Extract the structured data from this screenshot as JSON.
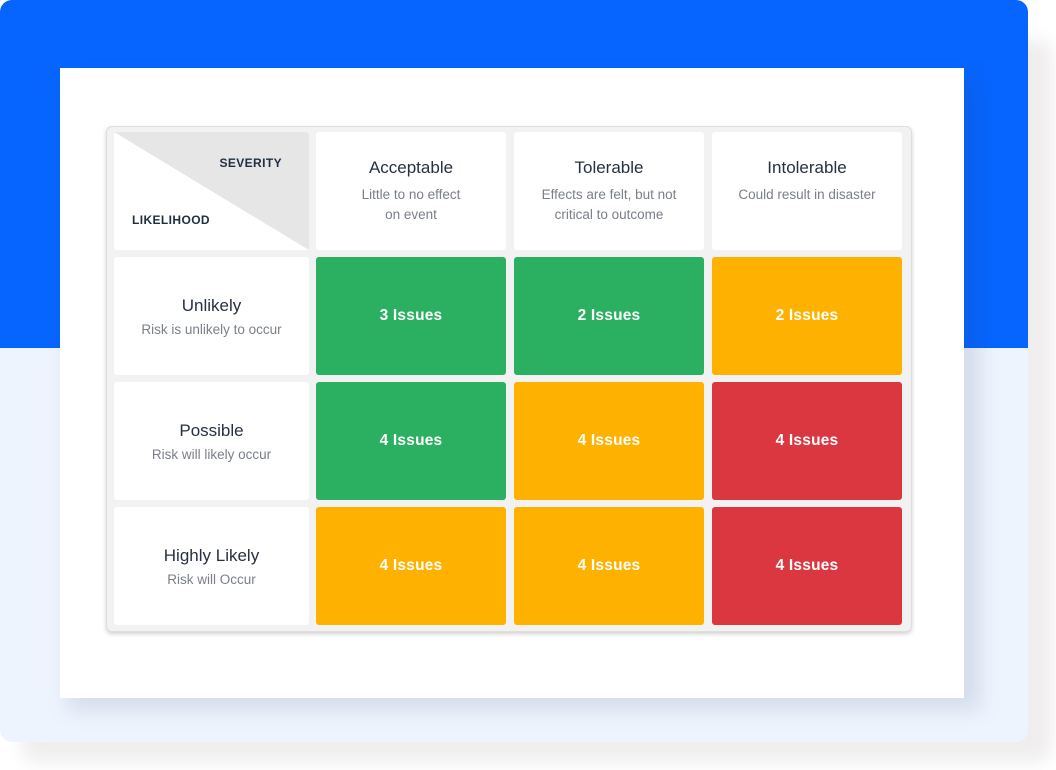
{
  "matrix": {
    "corner": {
      "top_label": "SEVERITY",
      "bottom_label": "LIKELIHOOD"
    },
    "columns": [
      {
        "title": "Acceptable",
        "description": "Little to no effect\non event"
      },
      {
        "title": "Tolerable",
        "description": "Effects are felt, but not\ncritical to outcome"
      },
      {
        "title": "Intolerable",
        "description": "Could result in disaster"
      }
    ],
    "rows": [
      {
        "title": "Unlikely",
        "description": "Risk is unlikely to occur",
        "cells": [
          "3 Issues",
          "2 Issues",
          "2 Issues"
        ],
        "levels": [
          "green",
          "green",
          "amber"
        ]
      },
      {
        "title": "Possible",
        "description": "Risk will likely occur",
        "cells": [
          "4 Issues",
          "4 Issues",
          "4 Issues"
        ],
        "levels": [
          "green",
          "amber",
          "red"
        ]
      },
      {
        "title": "Highly Likely",
        "description": "Risk will Occur",
        "cells": [
          "4 Issues",
          "4 Issues",
          "4 Issues"
        ],
        "levels": [
          "amber",
          "amber",
          "red"
        ]
      }
    ]
  },
  "colors": {
    "page_accent": "#0665ff",
    "page_background_lower": "#eef4fe",
    "low_risk": "#2bb062",
    "medium_risk": "#ffb100",
    "high_risk": "#db3741"
  }
}
